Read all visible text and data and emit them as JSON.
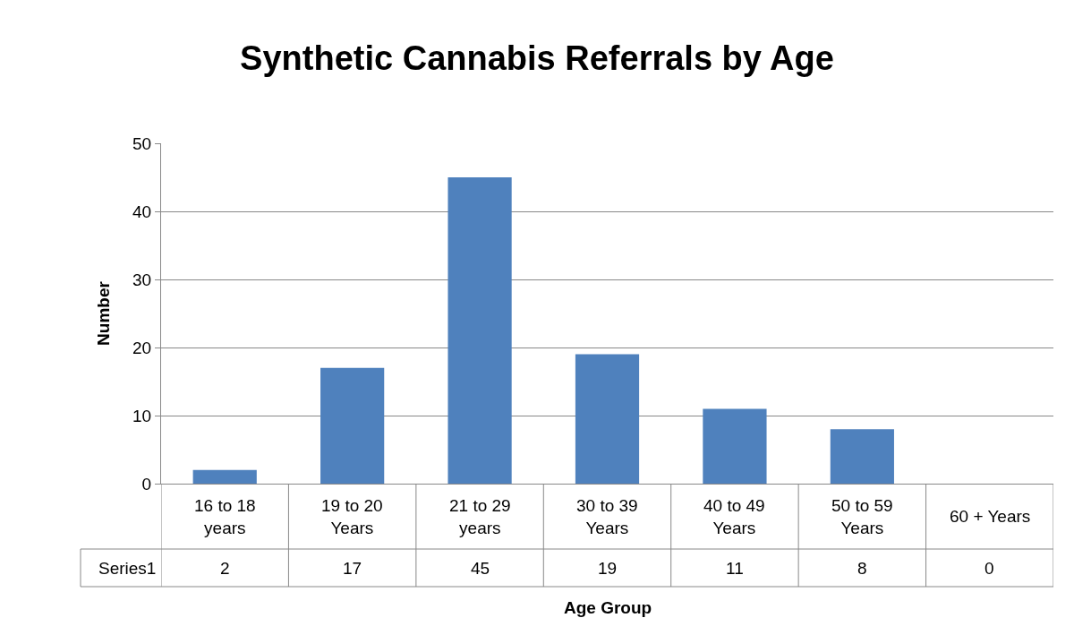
{
  "chart_data": {
    "type": "bar",
    "title": "Synthetic Cannabis Referrals by Age",
    "xlabel": "Age Group",
    "ylabel": "Number",
    "categories": [
      "16 to 18 years",
      "19 to 20 Years",
      "21 to 29 years",
      "30 to 39 Years",
      "40 to 49 Years",
      "50 to 59 Years",
      "60 + Years"
    ],
    "series": [
      {
        "name": "Series1",
        "color": "#4f81bd",
        "values": [
          2,
          17,
          45,
          19,
          11,
          8,
          0
        ]
      }
    ],
    "ylim": [
      0,
      50
    ],
    "yticks": [
      0,
      10,
      20,
      30,
      40,
      50
    ],
    "grid": "y",
    "data_labels": true,
    "legend": false
  }
}
